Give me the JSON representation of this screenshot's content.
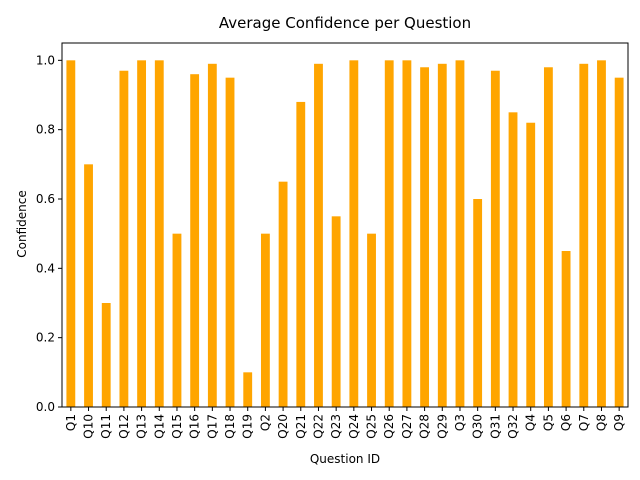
{
  "chart_data": {
    "type": "bar",
    "title": "Average Confidence per Question",
    "xlabel": "Question ID",
    "ylabel": "Confidence",
    "ylim": [
      0,
      1.05
    ],
    "yticks": [
      "0.0",
      "0.2",
      "0.4",
      "0.6",
      "0.8",
      "1.0"
    ],
    "ytick_values": [
      0,
      0.2,
      0.4,
      0.6,
      0.8,
      1.0
    ],
    "grid": false,
    "legend": "none",
    "bar_color": "#FFA500",
    "categories": [
      "Q1",
      "Q10",
      "Q11",
      "Q12",
      "Q13",
      "Q14",
      "Q15",
      "Q16",
      "Q17",
      "Q18",
      "Q19",
      "Q2",
      "Q20",
      "Q21",
      "Q22",
      "Q23",
      "Q24",
      "Q25",
      "Q26",
      "Q27",
      "Q28",
      "Q29",
      "Q3",
      "Q30",
      "Q31",
      "Q32",
      "Q4",
      "Q5",
      "Q6",
      "Q7",
      "Q8",
      "Q9"
    ],
    "values": [
      1.0,
      0.7,
      0.3,
      0.97,
      1.0,
      1.0,
      0.5,
      0.96,
      0.99,
      0.95,
      0.1,
      0.5,
      0.65,
      0.88,
      0.99,
      0.55,
      1.0,
      0.5,
      1.0,
      1.0,
      0.98,
      0.99,
      1.0,
      0.6,
      0.97,
      0.85,
      0.82,
      0.98,
      0.45,
      0.99,
      1.0,
      0.95
    ]
  }
}
